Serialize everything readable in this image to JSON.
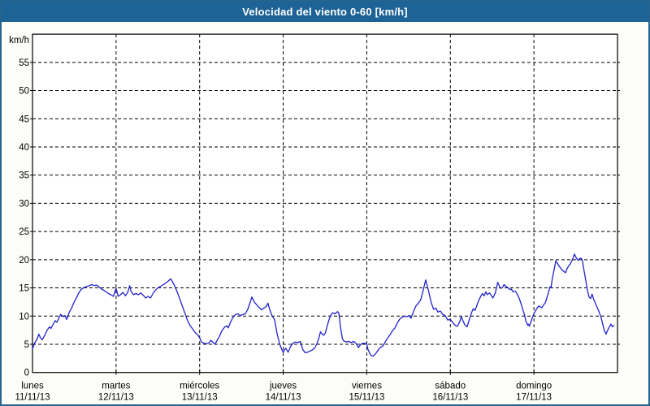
{
  "window": {
    "title": "Velocidad del viento 0-60 [km/h]"
  },
  "colors": {
    "titlebar_bg": "#1d6396",
    "titlebar_text": "#ffffff",
    "frame_border": "#24648f",
    "page_bg": "#fcfdf8",
    "plot_bg": "#ffffff",
    "grid": "#000000",
    "axis": "#000000",
    "line": "#2222cc",
    "label_text": "#000000"
  },
  "chart_data": {
    "type": "line",
    "title": "Velocidad del viento 0-60 [km/h]",
    "ylabel": "km/h",
    "ylim": [
      0,
      60
    ],
    "ytick_step": 5,
    "yticks_labeled": [
      0,
      5,
      10,
      15,
      20,
      25,
      30,
      35,
      40,
      45,
      50,
      55
    ],
    "top_axis_label": "km/h",
    "x_unit": "hours from Monday 00:00",
    "xlim": [
      0,
      168
    ],
    "grid": "dashed",
    "legend_position": "none",
    "days": [
      {
        "name": "lunes",
        "date": "11/11/13"
      },
      {
        "name": "martes",
        "date": "12/11/13"
      },
      {
        "name": "miércoles",
        "date": "13/11/13"
      },
      {
        "name": "jueves",
        "date": "14/11/13"
      },
      {
        "name": "viernes",
        "date": "15/11/13"
      },
      {
        "name": "sábado",
        "date": "16/11/13"
      },
      {
        "name": "domingo",
        "date": "17/11/13"
      }
    ],
    "series": [
      {
        "name": "velocidad del viento",
        "color": "#2222cc",
        "points": [
          [
            0,
            4.2
          ],
          [
            0.7,
            5.3
          ],
          [
            1.4,
            6.0
          ],
          [
            1.8,
            6.8
          ],
          [
            2.3,
            6.1
          ],
          [
            2.8,
            5.8
          ],
          [
            3.5,
            6.6
          ],
          [
            4.2,
            7.5
          ],
          [
            4.9,
            8.1
          ],
          [
            5.3,
            7.8
          ],
          [
            6.0,
            8.6
          ],
          [
            6.5,
            9.2
          ],
          [
            7.0,
            8.9
          ],
          [
            7.7,
            9.8
          ],
          [
            8.1,
            10.3
          ],
          [
            8.8,
            9.9
          ],
          [
            9.3,
            10.1
          ],
          [
            9.8,
            9.4
          ],
          [
            10.5,
            10.6
          ],
          [
            11.2,
            11.4
          ],
          [
            11.9,
            12.4
          ],
          [
            12.5,
            13.1
          ],
          [
            13.2,
            14.0
          ],
          [
            13.9,
            14.7
          ],
          [
            14.6,
            15.0
          ],
          [
            15.3,
            15.2
          ],
          [
            16.3,
            15.4
          ],
          [
            17.0,
            15.6
          ],
          [
            17.7,
            15.4
          ],
          [
            18.4,
            15.5
          ],
          [
            19.1,
            15.2
          ],
          [
            19.8,
            14.8
          ],
          [
            20.4,
            14.6
          ],
          [
            21.1,
            14.3
          ],
          [
            21.8,
            14.0
          ],
          [
            22.5,
            13.8
          ],
          [
            23.2,
            13.5
          ],
          [
            24.0,
            14.9
          ],
          [
            24.6,
            13.5
          ],
          [
            25.3,
            13.8
          ],
          [
            26.0,
            14.2
          ],
          [
            26.7,
            13.6
          ],
          [
            27.4,
            14.3
          ],
          [
            27.9,
            15.4
          ],
          [
            28.3,
            14.4
          ],
          [
            29.0,
            13.8
          ],
          [
            29.7,
            14.0
          ],
          [
            30.4,
            13.8
          ],
          [
            31.1,
            14.1
          ],
          [
            31.8,
            13.7
          ],
          [
            32.5,
            13.2
          ],
          [
            33.2,
            13.5
          ],
          [
            33.9,
            13.2
          ],
          [
            34.6,
            14.0
          ],
          [
            35.3,
            14.6
          ],
          [
            36.0,
            15.0
          ],
          [
            36.9,
            15.3
          ],
          [
            37.9,
            15.7
          ],
          [
            38.8,
            16.1
          ],
          [
            39.7,
            16.6
          ],
          [
            40.4,
            15.9
          ],
          [
            41.1,
            15.0
          ],
          [
            41.8,
            13.9
          ],
          [
            42.5,
            12.7
          ],
          [
            43.2,
            11.5
          ],
          [
            43.9,
            10.3
          ],
          [
            44.6,
            9.1
          ],
          [
            45.3,
            8.3
          ],
          [
            46.0,
            7.7
          ],
          [
            46.7,
            7.1
          ],
          [
            47.4,
            6.7
          ],
          [
            48.0,
            6.2
          ],
          [
            48.5,
            5.4
          ],
          [
            49.2,
            5.2
          ],
          [
            49.9,
            5.1
          ],
          [
            50.6,
            5.2
          ],
          [
            51.2,
            5.7
          ],
          [
            51.9,
            5.3
          ],
          [
            52.4,
            5.0
          ],
          [
            53.1,
            5.8
          ],
          [
            53.7,
            6.4
          ],
          [
            54.4,
            7.4
          ],
          [
            55.1,
            8.0
          ],
          [
            55.8,
            8.3
          ],
          [
            56.2,
            7.9
          ],
          [
            56.9,
            9.0
          ],
          [
            57.6,
            9.8
          ],
          [
            58.3,
            10.3
          ],
          [
            59.0,
            10.4
          ],
          [
            59.7,
            10.1
          ],
          [
            60.4,
            10.3
          ],
          [
            61.1,
            10.4
          ],
          [
            61.8,
            11.2
          ],
          [
            62.5,
            12.4
          ],
          [
            63.0,
            13.4
          ],
          [
            63.7,
            12.5
          ],
          [
            64.4,
            12.0
          ],
          [
            65.1,
            11.5
          ],
          [
            65.8,
            11.1
          ],
          [
            66.4,
            11.4
          ],
          [
            67.1,
            11.7
          ],
          [
            67.6,
            12.3
          ],
          [
            68.1,
            11.2
          ],
          [
            68.8,
            10.0
          ],
          [
            69.5,
            9.4
          ],
          [
            70.2,
            7.0
          ],
          [
            70.9,
            5.2
          ],
          [
            71.6,
            4.0
          ],
          [
            72.0,
            3.6
          ],
          [
            72.7,
            4.3
          ],
          [
            73.4,
            3.6
          ],
          [
            74.1,
            4.6
          ],
          [
            74.8,
            5.2
          ],
          [
            75.5,
            5.4
          ],
          [
            76.2,
            5.3
          ],
          [
            76.9,
            5.5
          ],
          [
            77.6,
            4.1
          ],
          [
            78.3,
            3.5
          ],
          [
            79.0,
            3.6
          ],
          [
            79.7,
            3.8
          ],
          [
            80.4,
            4.0
          ],
          [
            81.1,
            4.4
          ],
          [
            81.8,
            5.3
          ],
          [
            82.2,
            6.0
          ],
          [
            82.7,
            7.2
          ],
          [
            83.2,
            6.8
          ],
          [
            83.6,
            6.6
          ],
          [
            84.1,
            7.0
          ],
          [
            84.8,
            8.6
          ],
          [
            85.5,
            10.0
          ],
          [
            86.2,
            10.6
          ],
          [
            86.9,
            10.4
          ],
          [
            87.6,
            10.8
          ],
          [
            88.0,
            10.5
          ],
          [
            88.5,
            7.8
          ],
          [
            89.0,
            6.0
          ],
          [
            89.4,
            5.6
          ],
          [
            90.1,
            5.4
          ],
          [
            90.8,
            5.5
          ],
          [
            91.5,
            5.3
          ],
          [
            92.2,
            5.5
          ],
          [
            92.9,
            5.2
          ],
          [
            93.6,
            4.4
          ],
          [
            94.3,
            5.0
          ],
          [
            95.0,
            5.2
          ],
          [
            96.0,
            5.1
          ],
          [
            96.4,
            4.0
          ],
          [
            97.1,
            3.1
          ],
          [
            97.8,
            2.9
          ],
          [
            98.5,
            3.3
          ],
          [
            99.2,
            3.9
          ],
          [
            99.9,
            4.4
          ],
          [
            100.6,
            4.7
          ],
          [
            101.3,
            5.4
          ],
          [
            102.0,
            6.1
          ],
          [
            102.7,
            6.7
          ],
          [
            103.4,
            7.4
          ],
          [
            104.1,
            7.9
          ],
          [
            104.8,
            8.8
          ],
          [
            105.4,
            9.4
          ],
          [
            106.1,
            9.8
          ],
          [
            106.8,
            10.0
          ],
          [
            107.5,
            9.9
          ],
          [
            108.2,
            10.1
          ],
          [
            108.7,
            9.6
          ],
          [
            109.4,
            10.8
          ],
          [
            110.1,
            11.8
          ],
          [
            110.8,
            12.3
          ],
          [
            111.5,
            12.9
          ],
          [
            112.2,
            14.6
          ],
          [
            112.9,
            16.4
          ],
          [
            113.4,
            15.3
          ],
          [
            113.8,
            14.3
          ],
          [
            114.5,
            12.4
          ],
          [
            115.2,
            11.2
          ],
          [
            115.9,
            11.4
          ],
          [
            116.4,
            10.7
          ],
          [
            117.1,
            10.9
          ],
          [
            117.8,
            10.3
          ],
          [
            118.5,
            10.1
          ],
          [
            119.2,
            9.3
          ],
          [
            120.0,
            9.4
          ],
          [
            120.4,
            9.1
          ],
          [
            120.9,
            8.7
          ],
          [
            121.5,
            8.3
          ],
          [
            122.0,
            8.2
          ],
          [
            122.7,
            9.0
          ],
          [
            123.1,
            9.9
          ],
          [
            123.6,
            9.2
          ],
          [
            124.1,
            8.5
          ],
          [
            124.8,
            8.1
          ],
          [
            125.5,
            9.5
          ],
          [
            126.2,
            10.8
          ],
          [
            126.6,
            11.3
          ],
          [
            127.1,
            11.0
          ],
          [
            127.8,
            12.2
          ],
          [
            128.3,
            13.0
          ],
          [
            128.8,
            13.6
          ],
          [
            129.2,
            14.0
          ],
          [
            129.7,
            13.6
          ],
          [
            130.2,
            14.3
          ],
          [
            130.6,
            13.8
          ],
          [
            131.3,
            14.1
          ],
          [
            131.8,
            13.6
          ],
          [
            132.2,
            13.2
          ],
          [
            132.9,
            14.1
          ],
          [
            133.6,
            16.0
          ],
          [
            134.1,
            15.3
          ],
          [
            134.5,
            14.9
          ],
          [
            135.0,
            15.1
          ],
          [
            135.4,
            15.6
          ],
          [
            135.9,
            15.3
          ],
          [
            136.4,
            15.1
          ],
          [
            137.1,
            14.7
          ],
          [
            137.5,
            14.8
          ],
          [
            138.0,
            14.3
          ],
          [
            138.7,
            14.4
          ],
          [
            139.4,
            13.7
          ],
          [
            139.9,
            12.9
          ],
          [
            140.3,
            12.2
          ],
          [
            140.8,
            11.2
          ],
          [
            141.3,
            10.2
          ],
          [
            141.7,
            9.1
          ],
          [
            142.2,
            8.4
          ],
          [
            142.4,
            8.6
          ],
          [
            142.7,
            8.2
          ],
          [
            143.1,
            8.9
          ],
          [
            143.6,
            9.8
          ],
          [
            144.0,
            10.4
          ],
          [
            144.5,
            11.0
          ],
          [
            144.9,
            11.4
          ],
          [
            145.4,
            11.8
          ],
          [
            145.9,
            11.6
          ],
          [
            146.3,
            11.5
          ],
          [
            146.8,
            12.0
          ],
          [
            147.3,
            12.4
          ],
          [
            147.7,
            13.2
          ],
          [
            148.2,
            14.2
          ],
          [
            148.6,
            15.2
          ],
          [
            148.9,
            15.0
          ],
          [
            149.3,
            16.8
          ],
          [
            149.8,
            18.2
          ],
          [
            150.3,
            19.8
          ],
          [
            150.7,
            19.4
          ],
          [
            151.2,
            18.9
          ],
          [
            151.9,
            18.3
          ],
          [
            152.6,
            17.9
          ],
          [
            153.1,
            17.7
          ],
          [
            153.5,
            18.4
          ],
          [
            154.0,
            18.9
          ],
          [
            154.5,
            19.3
          ],
          [
            155.2,
            20.2
          ],
          [
            155.6,
            21.0
          ],
          [
            156.1,
            20.4
          ],
          [
            156.6,
            19.9
          ],
          [
            157.0,
            20.1
          ],
          [
            157.5,
            20.3
          ],
          [
            157.9,
            19.9
          ],
          [
            158.4,
            18.0
          ],
          [
            158.9,
            16.3
          ],
          [
            159.3,
            14.8
          ],
          [
            159.8,
            13.4
          ],
          [
            160.3,
            13.1
          ],
          [
            160.7,
            13.9
          ],
          [
            161.2,
            12.9
          ],
          [
            161.9,
            11.9
          ],
          [
            162.6,
            10.9
          ],
          [
            163.3,
            9.7
          ],
          [
            163.7,
            8.7
          ],
          [
            164.2,
            7.5
          ],
          [
            164.7,
            6.8
          ],
          [
            165.1,
            7.4
          ],
          [
            165.6,
            8.0
          ],
          [
            166.1,
            8.6
          ],
          [
            166.5,
            8.1
          ],
          [
            167.0,
            8.3
          ]
        ]
      }
    ]
  }
}
